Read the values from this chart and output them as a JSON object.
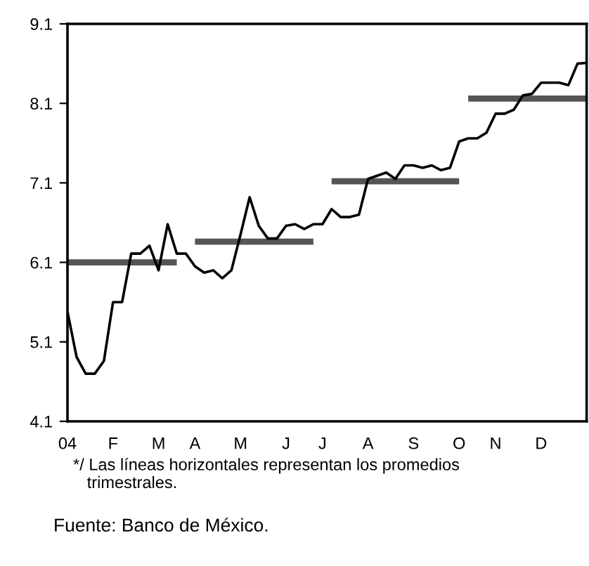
{
  "chart_data": {
    "type": "line",
    "categories": [
      "04",
      null,
      null,
      null,
      null,
      "F",
      null,
      null,
      null,
      null,
      "M",
      null,
      null,
      null,
      "A",
      null,
      null,
      null,
      null,
      "M",
      null,
      null,
      null,
      null,
      "J",
      null,
      null,
      null,
      "J",
      null,
      null,
      null,
      null,
      "A",
      null,
      null,
      null,
      null,
      "S",
      null,
      null,
      null,
      null,
      "O",
      null,
      null,
      null,
      "N",
      null,
      null,
      null,
      null,
      "D",
      null,
      null,
      null,
      null,
      null
    ],
    "ylim": [
      4.1,
      9.1
    ],
    "yticks": [
      4.1,
      5.1,
      6.1,
      7.1,
      8.1,
      9.1
    ],
    "grid": false,
    "legend": false,
    "series": [
      {
        "color": "#000000",
        "values": [
          5.48,
          4.91,
          4.7,
          4.7,
          4.86,
          5.6,
          5.6,
          6.21,
          6.21,
          6.31,
          6.0,
          6.58,
          6.21,
          6.21,
          6.05,
          5.97,
          6.0,
          5.9,
          6.0,
          6.45,
          6.92,
          6.56,
          6.4,
          6.4,
          6.56,
          6.58,
          6.52,
          6.58,
          6.58,
          6.77,
          6.67,
          6.67,
          6.7,
          7.15,
          7.19,
          7.23,
          7.15,
          7.32,
          7.32,
          7.29,
          7.32,
          7.26,
          7.29,
          7.62,
          7.66,
          7.66,
          7.73,
          7.97,
          7.97,
          8.02,
          8.2,
          8.22,
          8.36,
          8.36,
          8.36,
          8.33,
          8.6,
          8.61
        ]
      },
      {
        "color": "#555555",
        "values": [
          6.1,
          6.1,
          6.1,
          6.1,
          6.1,
          6.1,
          6.1,
          6.1,
          6.1,
          6.1,
          6.1,
          6.1,
          6.1,
          null,
          null,
          null,
          null,
          null,
          null,
          null,
          null,
          null,
          null,
          null,
          null,
          null,
          null,
          null,
          null,
          null,
          null,
          null,
          null,
          null,
          null,
          null,
          null,
          null,
          null,
          null,
          null,
          null,
          null,
          null,
          null,
          null,
          null,
          null,
          null,
          null,
          null,
          null,
          null,
          null,
          null,
          null,
          null,
          null
        ]
      },
      {
        "color": "#555555",
        "values": [
          null,
          null,
          null,
          null,
          null,
          null,
          null,
          null,
          null,
          null,
          null,
          null,
          null,
          null,
          6.36,
          6.36,
          6.36,
          6.36,
          6.36,
          6.36,
          6.36,
          6.36,
          6.36,
          6.36,
          6.36,
          6.36,
          6.36,
          6.36,
          null,
          null,
          null,
          null,
          null,
          null,
          null,
          null,
          null,
          null,
          null,
          null,
          null,
          null,
          null,
          null,
          null,
          null,
          null,
          null,
          null,
          null,
          null,
          null,
          null,
          null,
          null,
          null,
          null,
          null
        ]
      },
      {
        "color": "#555555",
        "values": [
          null,
          null,
          null,
          null,
          null,
          null,
          null,
          null,
          null,
          null,
          null,
          null,
          null,
          null,
          null,
          null,
          null,
          null,
          null,
          null,
          null,
          null,
          null,
          null,
          null,
          null,
          null,
          null,
          null,
          7.12,
          7.12,
          7.12,
          7.12,
          7.12,
          7.12,
          7.12,
          7.12,
          7.12,
          7.12,
          7.12,
          7.12,
          7.12,
          7.12,
          7.12,
          null,
          null,
          null,
          null,
          null,
          null,
          null,
          null,
          null,
          null,
          null,
          null,
          null,
          null
        ]
      },
      {
        "color": "#555555",
        "values": [
          null,
          null,
          null,
          null,
          null,
          null,
          null,
          null,
          null,
          null,
          null,
          null,
          null,
          null,
          null,
          null,
          null,
          null,
          null,
          null,
          null,
          null,
          null,
          null,
          null,
          null,
          null,
          null,
          null,
          null,
          null,
          null,
          null,
          null,
          null,
          null,
          null,
          null,
          null,
          null,
          null,
          null,
          null,
          null,
          8.16,
          8.16,
          8.16,
          8.16,
          8.16,
          8.16,
          8.16,
          8.16,
          8.16,
          8.16,
          8.16,
          8.16,
          8.16,
          8.16
        ]
      }
    ],
    "annotations": [
      "*/ Las líneas horizontales representan los promedios\n   trimestrales.",
      "Fuente: Banco de México."
    ]
  }
}
